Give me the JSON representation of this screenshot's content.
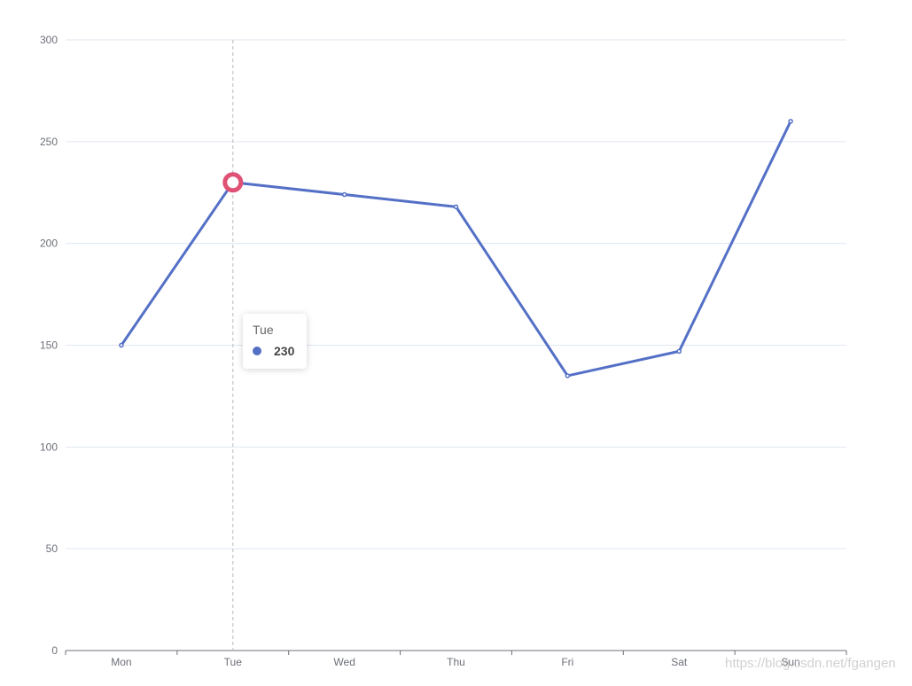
{
  "chart_data": {
    "type": "line",
    "categories": [
      "Mon",
      "Tue",
      "Wed",
      "Thu",
      "Fri",
      "Sat",
      "Sun"
    ],
    "series": [
      {
        "values": [
          150,
          230,
          224,
          218,
          135,
          147,
          260
        ]
      }
    ],
    "ylim": [
      0,
      300
    ],
    "yticks": [
      0,
      50,
      100,
      150,
      200,
      250,
      300
    ],
    "grid": true,
    "legend": "none",
    "colors": {
      "line": "#5470c6",
      "highlight": "#e05176",
      "grid": "#e0e6f1",
      "axis": "#6e7079",
      "pointer": "#bbbbbb"
    },
    "tooltip": {
      "category": "Tue",
      "value": "230"
    }
  },
  "watermark": "https://blog.csdn.net/fgangen"
}
